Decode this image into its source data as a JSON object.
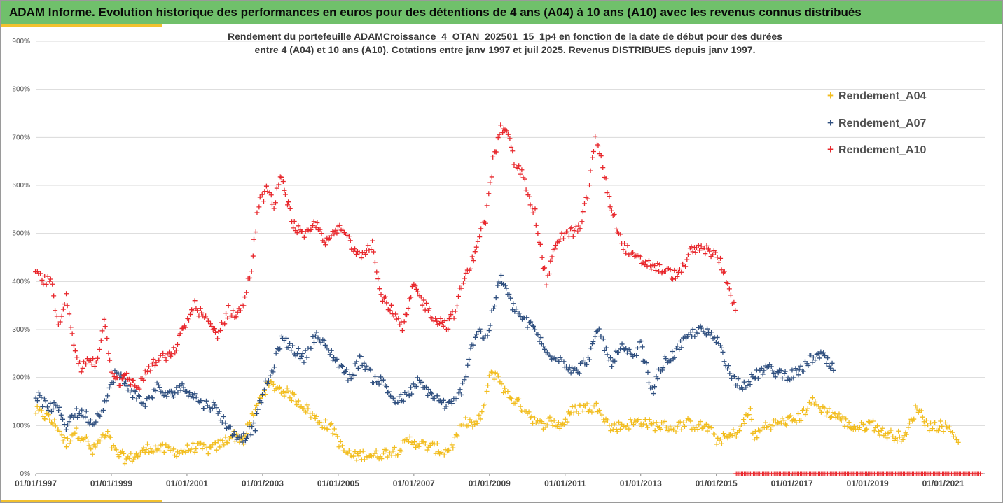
{
  "header": {
    "title": "ADAM Informe. Evolution historique des performances en euros pour des détentions de 4 ans (A04) à 10 ans (A10) avec les revenus connus distribués"
  },
  "chart_data": {
    "type": "scatter",
    "title_line1": "Rendement du portefeuille ADAMCroissance_4_OTAN_202501_15_1p4  en fonction de la date de début pour des durées",
    "title_line2": "entre 4 (A04) et 10 ans (A10). Cotations entre janv 1997 et juil 2025. Revenus DISTRIBUES depuis janv 1997.",
    "xlabel": "",
    "ylabel": "",
    "x_range": [
      1997.0,
      2022.1
    ],
    "ylim": [
      0,
      900
    ],
    "y_ticks": [
      "0%",
      "100%",
      "200%",
      "300%",
      "400%",
      "500%",
      "600%",
      "700%",
      "800%",
      "900%"
    ],
    "x_tick_years": [
      1997,
      1999,
      2001,
      2003,
      2005,
      2007,
      2009,
      2011,
      2013,
      2015,
      2017,
      2019,
      2021
    ],
    "x_ticks": [
      "01/01/1997",
      "01/01/1999",
      "01/01/2001",
      "01/01/2003",
      "01/01/2005",
      "01/01/2007",
      "01/01/2009",
      "01/01/2011",
      "01/01/2013",
      "01/01/2015",
      "01/01/2017",
      "01/01/2019",
      "01/01/2021"
    ],
    "grid": "horizontal",
    "legend_position": "top-right",
    "marker": "+",
    "series": [
      {
        "name": "Rendement_A04",
        "color": "#f2bd1e",
        "x": [
          1997.0,
          1997.3,
          1997.6,
          1997.8,
          1998.0,
          1998.3,
          1998.5,
          1998.7,
          1998.9,
          1999.1,
          1999.4,
          1999.7,
          2000.0,
          2000.4,
          2000.8,
          2001.2,
          2001.6,
          2001.9,
          2002.2,
          2002.5,
          2002.8,
          2003.0,
          2003.2,
          2003.5,
          2003.8,
          2004.1,
          2004.4,
          2004.7,
          2004.9,
          2005.1,
          2005.4,
          2005.7,
          2006.0,
          2006.3,
          2006.6,
          2006.9,
          2007.2,
          2007.5,
          2007.8,
          2008.0,
          2008.2,
          2008.4,
          2008.6,
          2008.8,
          2009.0,
          2009.2,
          2009.4,
          2009.7,
          2010.0,
          2010.3,
          2010.6,
          2010.9,
          2011.2,
          2011.5,
          2011.7,
          2011.9,
          2012.2,
          2012.5,
          2012.8,
          2013.0,
          2013.3,
          2013.6,
          2013.9,
          2014.2,
          2014.5,
          2014.8,
          2015.0,
          2015.3,
          2015.6,
          2015.9,
          2016.0,
          2016.3,
          2016.6,
          2016.9,
          2017.2,
          2017.5,
          2017.7,
          2017.9,
          2018.2,
          2018.5,
          2018.8,
          2019.1,
          2019.4,
          2019.7,
          2020.0,
          2020.3,
          2020.6,
          2020.9,
          2021.2,
          2021.4
        ],
        "y": [
          130,
          118,
          95,
          60,
          88,
          75,
          45,
          70,
          80,
          45,
          30,
          38,
          55,
          50,
          45,
          55,
          50,
          62,
          80,
          70,
          130,
          170,
          185,
          175,
          160,
          140,
          115,
          100,
          90,
          50,
          35,
          40,
          38,
          45,
          50,
          70,
          60,
          55,
          45,
          55,
          90,
          110,
          100,
          120,
          200,
          210,
          170,
          150,
          130,
          100,
          110,
          100,
          130,
          140,
          135,
          140,
          95,
          100,
          105,
          110,
          100,
          100,
          95,
          105,
          100,
          95,
          70,
          75,
          90,
          130,
          75,
          100,
          105,
          110,
          115,
          150,
          140,
          130,
          120,
          100,
          95,
          105,
          85,
          80,
          75,
          140,
          100,
          100,
          95,
          65
        ]
      },
      {
        "name": "Rendement_A07",
        "color": "#2f4f7f",
        "x": [
          1997.0,
          1997.3,
          1997.6,
          1997.8,
          1998.0,
          1998.3,
          1998.5,
          1998.7,
          1998.9,
          1999.1,
          1999.3,
          1999.6,
          1999.9,
          2000.2,
          2000.5,
          2000.8,
          2001.1,
          2001.4,
          2001.7,
          2001.9,
          2002.2,
          2002.5,
          2002.8,
          2003.0,
          2003.2,
          2003.5,
          2003.8,
          2004.1,
          2004.4,
          2004.7,
          2005.0,
          2005.3,
          2005.6,
          2005.9,
          2006.2,
          2006.5,
          2006.8,
          2007.1,
          2007.4,
          2007.7,
          2007.9,
          2008.1,
          2008.3,
          2008.5,
          2008.7,
          2008.9,
          2009.1,
          2009.3,
          2009.6,
          2009.9,
          2010.2,
          2010.5,
          2010.8,
          2011.0,
          2011.3,
          2011.6,
          2011.9,
          2012.2,
          2012.5,
          2012.8,
          2013.0,
          2013.3,
          2013.6,
          2013.9,
          2014.2,
          2014.5,
          2014.8,
          2015.1,
          2015.4,
          2015.7,
          2016.0,
          2016.3,
          2016.6,
          2016.9,
          2017.2,
          2017.5,
          2017.8,
          2018.1
        ],
        "y": [
          165,
          140,
          135,
          100,
          125,
          125,
          105,
          130,
          160,
          210,
          195,
          165,
          145,
          180,
          160,
          180,
          170,
          145,
          140,
          120,
          85,
          75,
          100,
          170,
          200,
          280,
          260,
          240,
          290,
          260,
          230,
          200,
          240,
          200,
          190,
          150,
          160,
          190,
          170,
          150,
          140,
          150,
          180,
          260,
          300,
          280,
          340,
          410,
          350,
          320,
          300,
          250,
          245,
          230,
          210,
          240,
          300,
          230,
          260,
          240,
          270,
          170,
          230,
          250,
          280,
          300,
          290,
          270,
          200,
          185,
          200,
          220,
          210,
          205,
          210,
          240,
          245,
          215
        ]
      },
      {
        "name": "Rendement_A10",
        "color": "#e8272c",
        "x": [
          1997.0,
          1997.2,
          1997.4,
          1997.6,
          1997.8,
          1998.0,
          1998.2,
          1998.4,
          1998.6,
          1998.8,
          1999.0,
          1999.2,
          1999.4,
          1999.7,
          2000.0,
          2000.3,
          2000.6,
          2000.9,
          2001.2,
          2001.5,
          2001.8,
          2002.1,
          2002.3,
          2002.5,
          2002.7,
          2002.9,
          2003.1,
          2003.3,
          2003.5,
          2003.8,
          2004.1,
          2004.4,
          2004.7,
          2005.0,
          2005.2,
          2005.4,
          2005.6,
          2005.9,
          2006.1,
          2006.4,
          2006.7,
          2007.0,
          2007.3,
          2007.6,
          2007.9,
          2008.1,
          2008.3,
          2008.5,
          2008.7,
          2008.9,
          2009.1,
          2009.3,
          2009.5,
          2009.7,
          2009.9,
          2010.2,
          2010.5,
          2010.8,
          2011.1,
          2011.4,
          2011.6,
          2011.8,
          2012.0,
          2012.2,
          2012.5,
          2012.8,
          2013.1,
          2013.4,
          2013.7,
          2014.0,
          2014.3,
          2014.6,
          2014.9,
          2015.1,
          2015.3,
          2015.5
        ],
        "y": [
          420,
          400,
          405,
          300,
          380,
          260,
          215,
          240,
          230,
          320,
          220,
          190,
          200,
          180,
          220,
          240,
          245,
          300,
          350,
          320,
          290,
          340,
          330,
          350,
          430,
          560,
          590,
          560,
          620,
          520,
          490,
          520,
          480,
          510,
          500,
          470,
          460,
          480,
          380,
          340,
          300,
          390,
          350,
          320,
          310,
          340,
          400,
          430,
          490,
          530,
          650,
          720,
          700,
          640,
          620,
          540,
          400,
          490,
          500,
          510,
          580,
          700,
          640,
          560,
          480,
          450,
          440,
          430,
          420,
          410,
          460,
          470,
          460,
          440,
          400,
          340
        ]
      }
    ],
    "flat_segment": {
      "name": "Rendement_A10",
      "color": "#e8272c",
      "x_start": 2015.5,
      "x_end": 2022.0,
      "value": 0
    }
  },
  "legend": {
    "items": [
      "Rendement_A04",
      "Rendement_A07",
      "Rendement_A10"
    ],
    "marker": "+"
  }
}
